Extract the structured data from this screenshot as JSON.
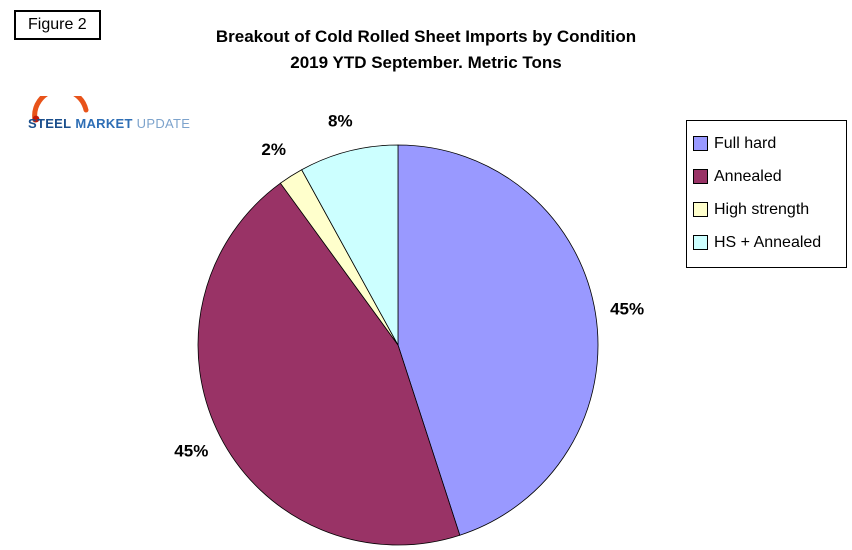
{
  "figure_label": "Figure 2",
  "title": {
    "line1": "Breakout of Cold Rolled Sheet Imports by Condition",
    "line2": "2019 YTD September. Metric Tons"
  },
  "logo": {
    "steel": "STEEL",
    "market": "MARKET",
    "update": "UPDATE",
    "steel_color": "#1a4e8c",
    "market_color": "#2e6eb5",
    "update_color": "#7da3cc",
    "swoosh_color": "#e8531a"
  },
  "chart_data": {
    "type": "pie",
    "title": "Breakout of Cold Rolled Sheet Imports by Condition",
    "subtitle": "2019 YTD September. Metric Tons",
    "units": "percent of metric tons",
    "start_angle_deg": 0,
    "direction": "clockwise",
    "legend_position": "right",
    "slices": [
      {
        "label": "Full hard",
        "value": 45,
        "display": "45%",
        "color": "#9999FF"
      },
      {
        "label": "Annealed",
        "value": 45,
        "display": "45%",
        "color": "#993366"
      },
      {
        "label": "High strength",
        "value": 2,
        "display": "2%",
        "color": "#FFFFCC"
      },
      {
        "label": "HS + Annealed",
        "value": 8,
        "display": "8%",
        "color": "#CCFFFF"
      }
    ]
  }
}
